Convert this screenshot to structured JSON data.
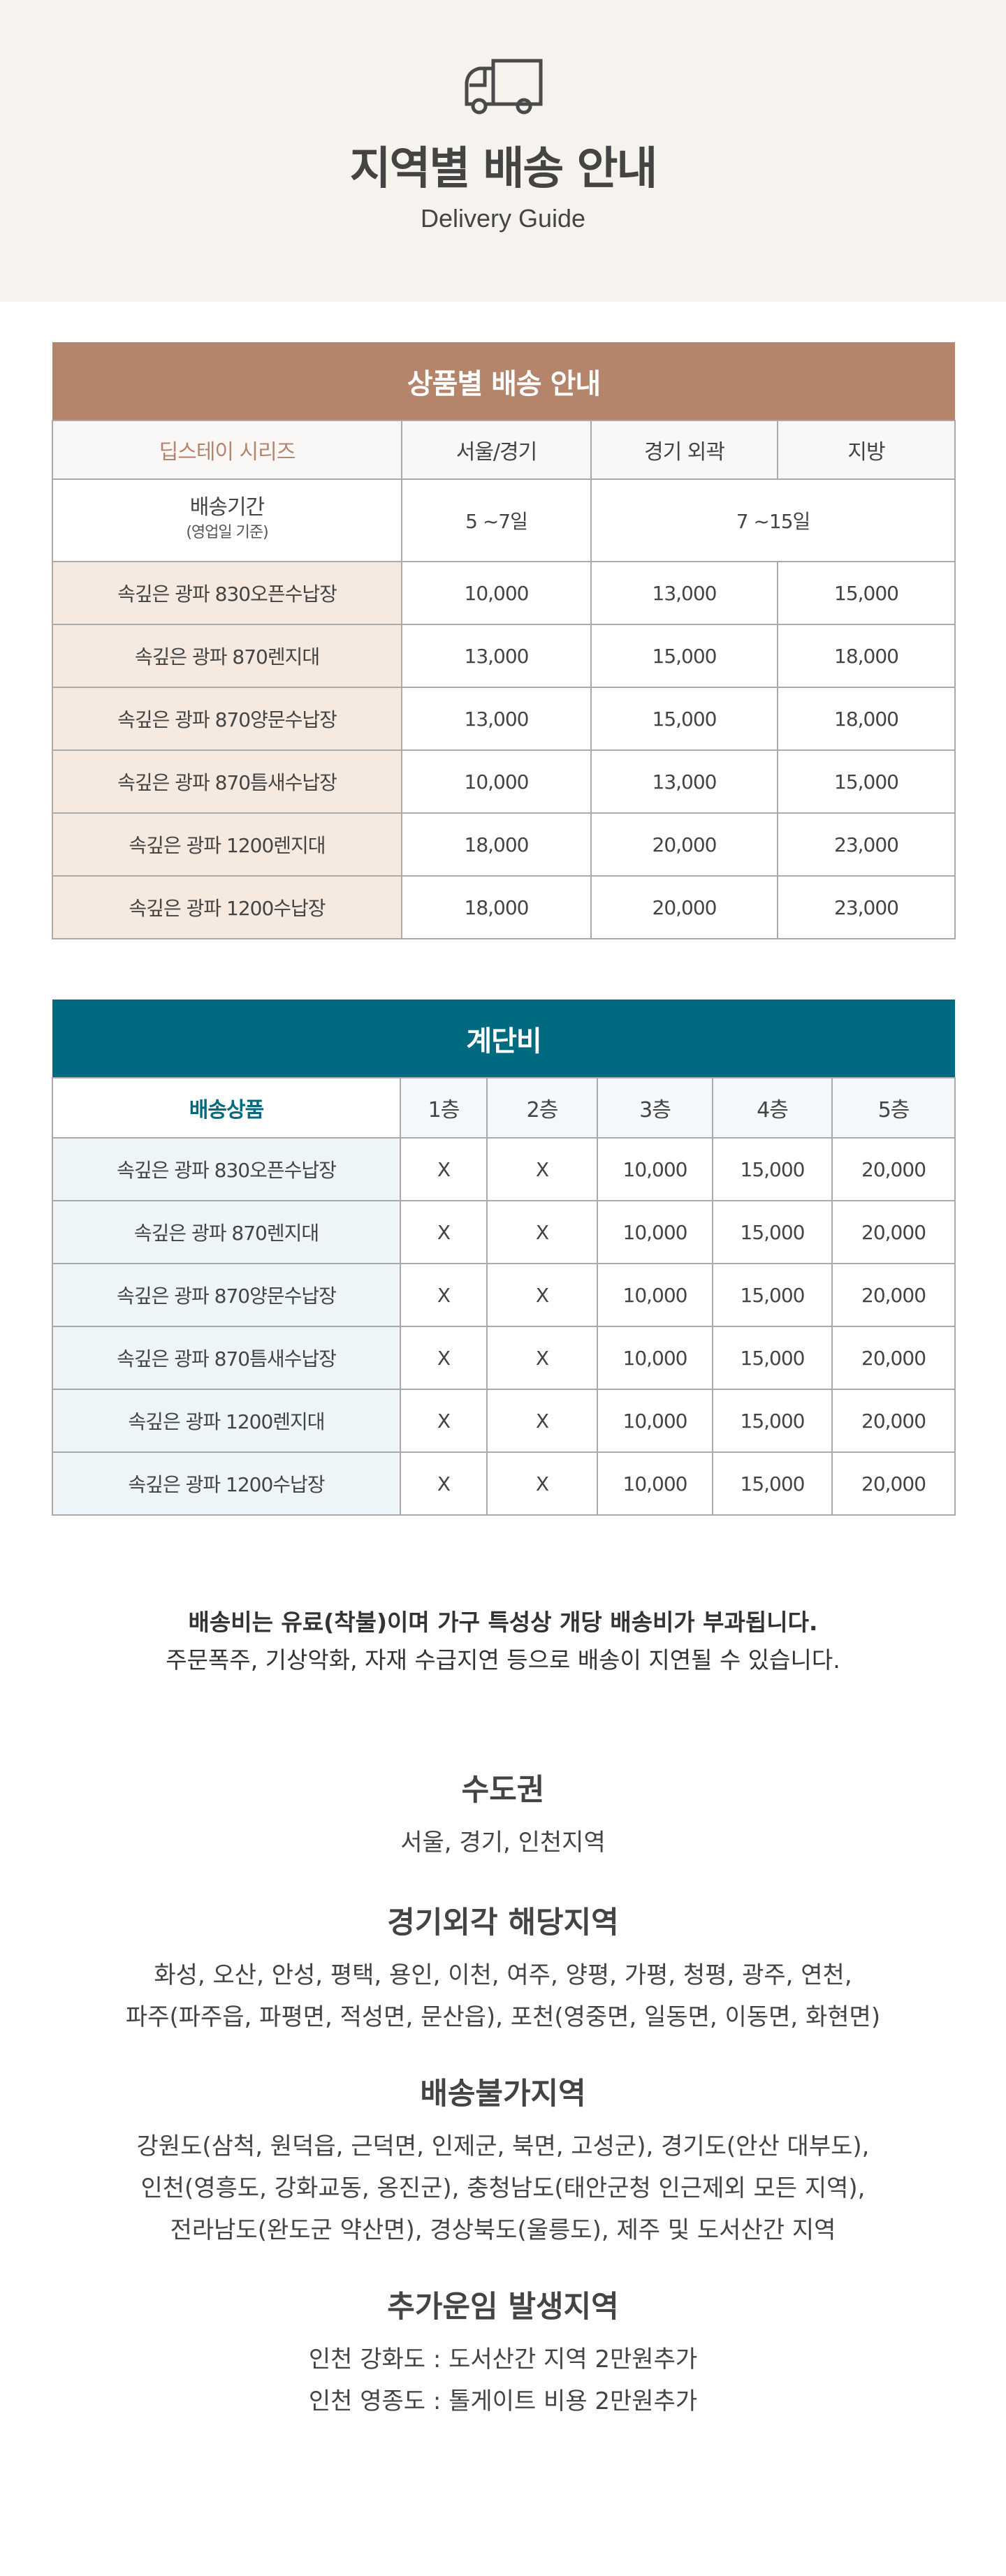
{
  "header": {
    "icon": "truck-icon",
    "title": "지역별 배송 안내",
    "subtitle": "Delivery Guide"
  },
  "colors": {
    "brand_brown": "#b4856a",
    "brand_teal": "#006a80",
    "hero_bg": "#f6f2ee"
  },
  "product_table": {
    "title": "상품별 배송 안내",
    "headers": [
      "딥스테이 시리즈",
      "서울/경기",
      "경기 외곽",
      "지방"
    ],
    "period": {
      "label": "배송기간",
      "note": "(영업일 기준)",
      "seoul": "5 ~7일",
      "other": "7 ~15일"
    },
    "rows": [
      {
        "name": "속깊은 광파 830오픈수납장",
        "v": [
          "10,000",
          "13,000",
          "15,000"
        ]
      },
      {
        "name": "속깊은 광파 870렌지대",
        "v": [
          "13,000",
          "15,000",
          "18,000"
        ]
      },
      {
        "name": "속깊은 광파 870양문수납장",
        "v": [
          "13,000",
          "15,000",
          "18,000"
        ]
      },
      {
        "name": "속깊은 광파 870틈새수납장",
        "v": [
          "10,000",
          "13,000",
          "15,000"
        ]
      },
      {
        "name": "속깊은 광파 1200렌지대",
        "v": [
          "18,000",
          "20,000",
          "23,000"
        ]
      },
      {
        "name": "속깊은 광파 1200수납장",
        "v": [
          "18,000",
          "20,000",
          "23,000"
        ]
      }
    ]
  },
  "stairs_table": {
    "title": "계단비",
    "headers": [
      "배송상품",
      "1층",
      "2층",
      "3층",
      "4층",
      "5층"
    ],
    "rows": [
      {
        "name": "속깊은 광파 830오픈수납장",
        "v": [
          "X",
          "X",
          "10,000",
          "15,000",
          "20,000"
        ]
      },
      {
        "name": "속깊은 광파 870렌지대",
        "v": [
          "X",
          "X",
          "10,000",
          "15,000",
          "20,000"
        ]
      },
      {
        "name": "속깊은 광파 870양문수납장",
        "v": [
          "X",
          "X",
          "10,000",
          "15,000",
          "20,000"
        ]
      },
      {
        "name": "속깊은 광파 870틈새수납장",
        "v": [
          "X",
          "X",
          "10,000",
          "15,000",
          "20,000"
        ]
      },
      {
        "name": "속깊은 광파 1200렌지대",
        "v": [
          "X",
          "X",
          "10,000",
          "15,000",
          "20,000"
        ]
      },
      {
        "name": "속깊은 광파 1200수납장",
        "v": [
          "X",
          "X",
          "10,000",
          "15,000",
          "20,000"
        ]
      }
    ]
  },
  "notice": {
    "bold": "배송비는 유료(착불)이며 가구 특성상 개당 배송비가 부과됩니다.",
    "normal": "주문폭주, 기상악화, 자재 수급지연 등으로 배송이 지연될 수 있습니다."
  },
  "regions": [
    {
      "title": "수도권",
      "lines": [
        "서울, 경기, 인천지역"
      ]
    },
    {
      "title": "경기외각 해당지역",
      "lines": [
        "화성, 오산, 안성, 평택, 용인, 이천, 여주, 양평, 가평, 청평, 광주, 연천,",
        "파주(파주읍, 파평면, 적성면, 문산읍), 포천(영중면, 일동면, 이동면, 화현면)"
      ]
    },
    {
      "title": "배송불가지역",
      "lines": [
        "강원도(삼척, 원덕읍, 근덕면, 인제군, 북면, 고성군), 경기도(안산 대부도),",
        "인천(영흥도, 강화교동, 옹진군), 충청남도(태안군청 인근제외 모든 지역),",
        "전라남도(완도군 약산면), 경상북도(울릉도), 제주 및 도서산간 지역"
      ]
    },
    {
      "title": "추가운임 발생지역",
      "lines": [
        "인천 강화도 : 도서산간 지역 2만원추가",
        "인천 영종도 : 톨게이트 비용 2만원추가"
      ]
    }
  ]
}
